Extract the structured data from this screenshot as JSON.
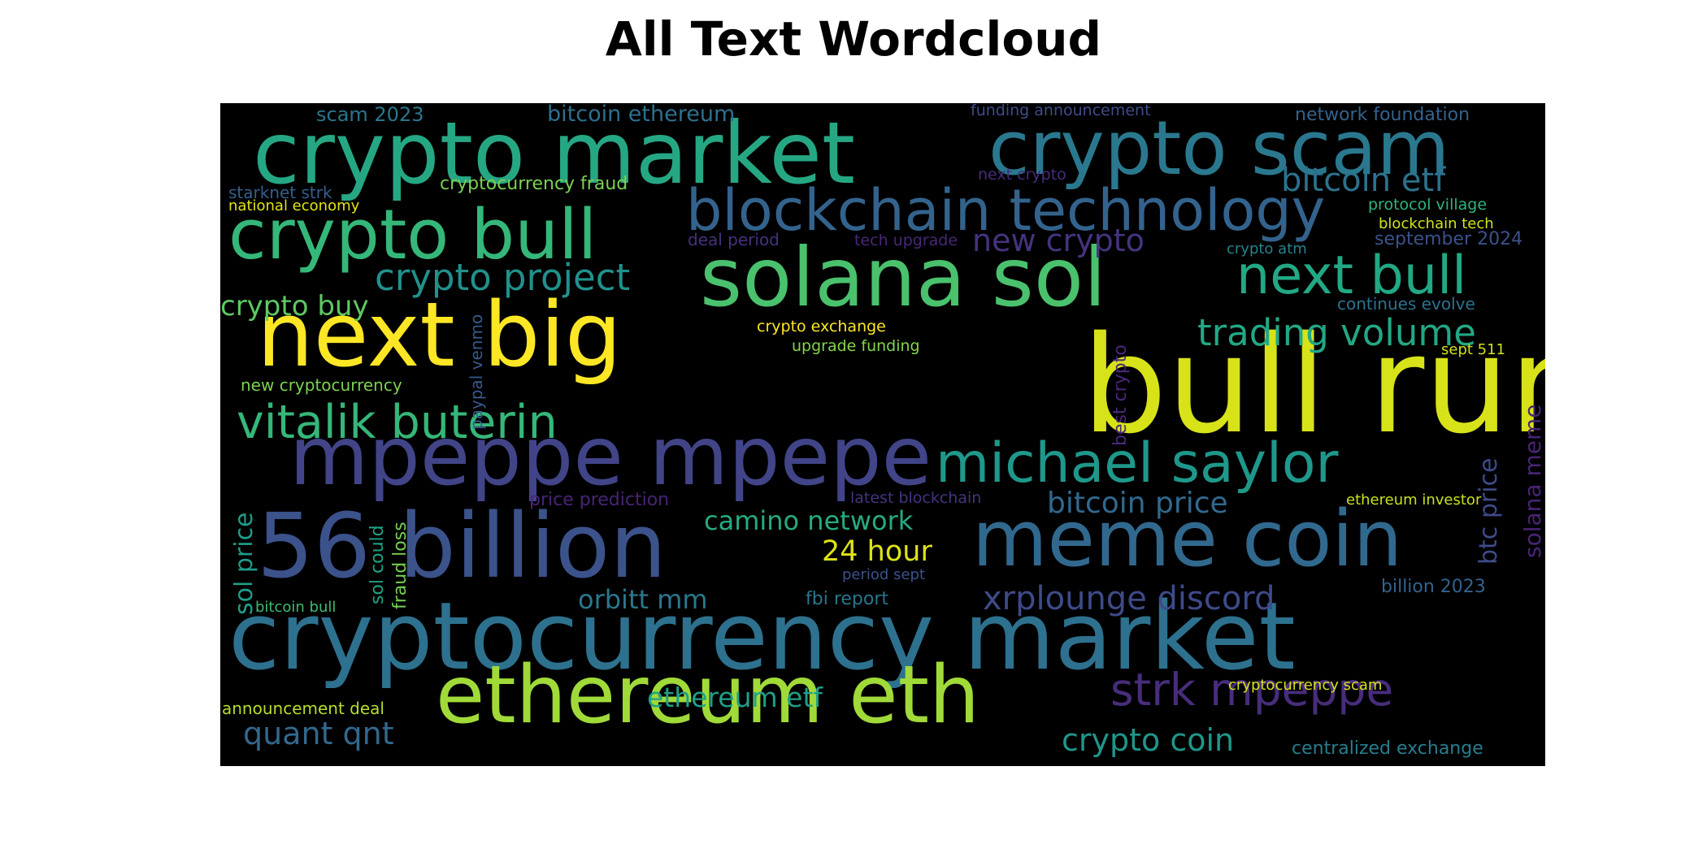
{
  "title": "All Text Wordcloud",
  "words": [
    {
      "text": "bull run",
      "color": "#d8e219",
      "vertical": false
    },
    {
      "text": "crypto market",
      "color": "#26a784",
      "vertical": false
    },
    {
      "text": "crypto scam",
      "color": "#2a788e",
      "vertical": false
    },
    {
      "text": "cryptocurrency market",
      "color": "#2d718e",
      "vertical": false
    },
    {
      "text": "solana sol",
      "color": "#4ac16d",
      "vertical": false
    },
    {
      "text": "next big",
      "color": "#fde725",
      "vertical": false
    },
    {
      "text": "mpeppe mpepe",
      "color": "#414487",
      "vertical": false
    },
    {
      "text": "56 billion",
      "color": "#3b528b",
      "vertical": false
    },
    {
      "text": "meme coin",
      "color": "#31688e",
      "vertical": false
    },
    {
      "text": "ethereum eth",
      "color": "#a0da39",
      "vertical": false
    },
    {
      "text": "crypto bull",
      "color": "#35b779",
      "vertical": false
    },
    {
      "text": "blockchain technology",
      "color": "#33638d",
      "vertical": false
    },
    {
      "text": "michael saylor",
      "color": "#1f988b",
      "vertical": false
    },
    {
      "text": "vitalik buterin",
      "color": "#35b779",
      "vertical": false
    },
    {
      "text": "next bull",
      "color": "#22a884",
      "vertical": false
    },
    {
      "text": "strk mpeppe",
      "color": "#472d7b",
      "vertical": false
    },
    {
      "text": "trading volume",
      "color": "#22a884",
      "vertical": false
    },
    {
      "text": "crypto project",
      "color": "#21918c",
      "vertical": false
    },
    {
      "text": "xrplounge discord",
      "color": "#3e4a89",
      "vertical": false
    },
    {
      "text": "bitcoin etf",
      "color": "#2c728e",
      "vertical": false
    },
    {
      "text": "bitcoin price",
      "color": "#30698e",
      "vertical": false
    },
    {
      "text": "crypto coin",
      "color": "#1f968b",
      "vertical": false
    },
    {
      "text": "24 hour",
      "color": "#dde318",
      "vertical": false
    },
    {
      "text": "camino network",
      "color": "#25ab82",
      "vertical": false
    },
    {
      "text": "ethereum etf",
      "color": "#1fa088",
      "vertical": false
    },
    {
      "text": "orbitt mm",
      "color": "#2a788e",
      "vertical": false
    },
    {
      "text": "quant qnt",
      "color": "#31688e",
      "vertical": false
    },
    {
      "text": "new crypto",
      "color": "#46337e",
      "vertical": false
    },
    {
      "text": "crypto buy",
      "color": "#5ec962",
      "vertical": false
    },
    {
      "text": "btc price",
      "color": "#3e4c8a",
      "vertical": true
    },
    {
      "text": "sol price",
      "color": "#1f9e89",
      "vertical": true
    },
    {
      "text": "solana meme",
      "color": "#482475",
      "vertical": true
    },
    {
      "text": "bitcoin ethereum",
      "color": "#2d708e",
      "vertical": false
    },
    {
      "text": "scam 2023",
      "color": "#2a768e",
      "vertical": false
    },
    {
      "text": "cryptocurrency fraud",
      "color": "#7ad151",
      "vertical": false
    },
    {
      "text": "funding announcement",
      "color": "#3e4c8a",
      "vertical": false
    },
    {
      "text": "network foundation",
      "color": "#33638d",
      "vertical": false
    },
    {
      "text": "next crypto",
      "color": "#472c7a",
      "vertical": false
    },
    {
      "text": "starknet strk",
      "color": "#355f8d",
      "vertical": false
    },
    {
      "text": "national economy",
      "color": "#e2e418",
      "vertical": false
    },
    {
      "text": "protocol village",
      "color": "#2fb47c",
      "vertical": false
    },
    {
      "text": "blockchain tech",
      "color": "#d2e21b",
      "vertical": false
    },
    {
      "text": "september 2024",
      "color": "#3b528b",
      "vertical": false
    },
    {
      "text": "deal period",
      "color": "#46317e",
      "vertical": false
    },
    {
      "text": "tech upgrade",
      "color": "#482878",
      "vertical": false
    },
    {
      "text": "crypto atm",
      "color": "#26828e",
      "vertical": false
    },
    {
      "text": "continues evolve",
      "color": "#2c728e",
      "vertical": false
    },
    {
      "text": "crypto exchange",
      "color": "#fde725",
      "vertical": false
    },
    {
      "text": "upgrade funding",
      "color": "#84d44b",
      "vertical": false
    },
    {
      "text": "sept 511",
      "color": "#d0e11c",
      "vertical": false
    },
    {
      "text": "new cryptocurrency",
      "color": "#7ad151",
      "vertical": false
    },
    {
      "text": "paypal venmo",
      "color": "#38598c",
      "vertical": true
    },
    {
      "text": "best crypto",
      "color": "#482979",
      "vertical": true
    },
    {
      "text": "price prediction",
      "color": "#482475",
      "vertical": false
    },
    {
      "text": "latest blockchain",
      "color": "#46337e",
      "vertical": false
    },
    {
      "text": "ethereum investor",
      "color": "#c8e020",
      "vertical": false
    },
    {
      "text": "period sept",
      "color": "#3b528b",
      "vertical": false
    },
    {
      "text": "billion 2023",
      "color": "#33638d",
      "vertical": false
    },
    {
      "text": "fbi report",
      "color": "#2a768e",
      "vertical": false
    },
    {
      "text": "sol could",
      "color": "#20a386",
      "vertical": true
    },
    {
      "text": "fraud loss",
      "color": "#75d054",
      "vertical": true
    },
    {
      "text": "bitcoin bull",
      "color": "#3fbc73",
      "vertical": false
    },
    {
      "text": "announcement deal",
      "color": "#b5de2b",
      "vertical": false
    },
    {
      "text": "cryptocurrency scam",
      "color": "#d8e219",
      "vertical": false
    },
    {
      "text": "centralized exchange",
      "color": "#287d8e",
      "vertical": false
    }
  ]
}
